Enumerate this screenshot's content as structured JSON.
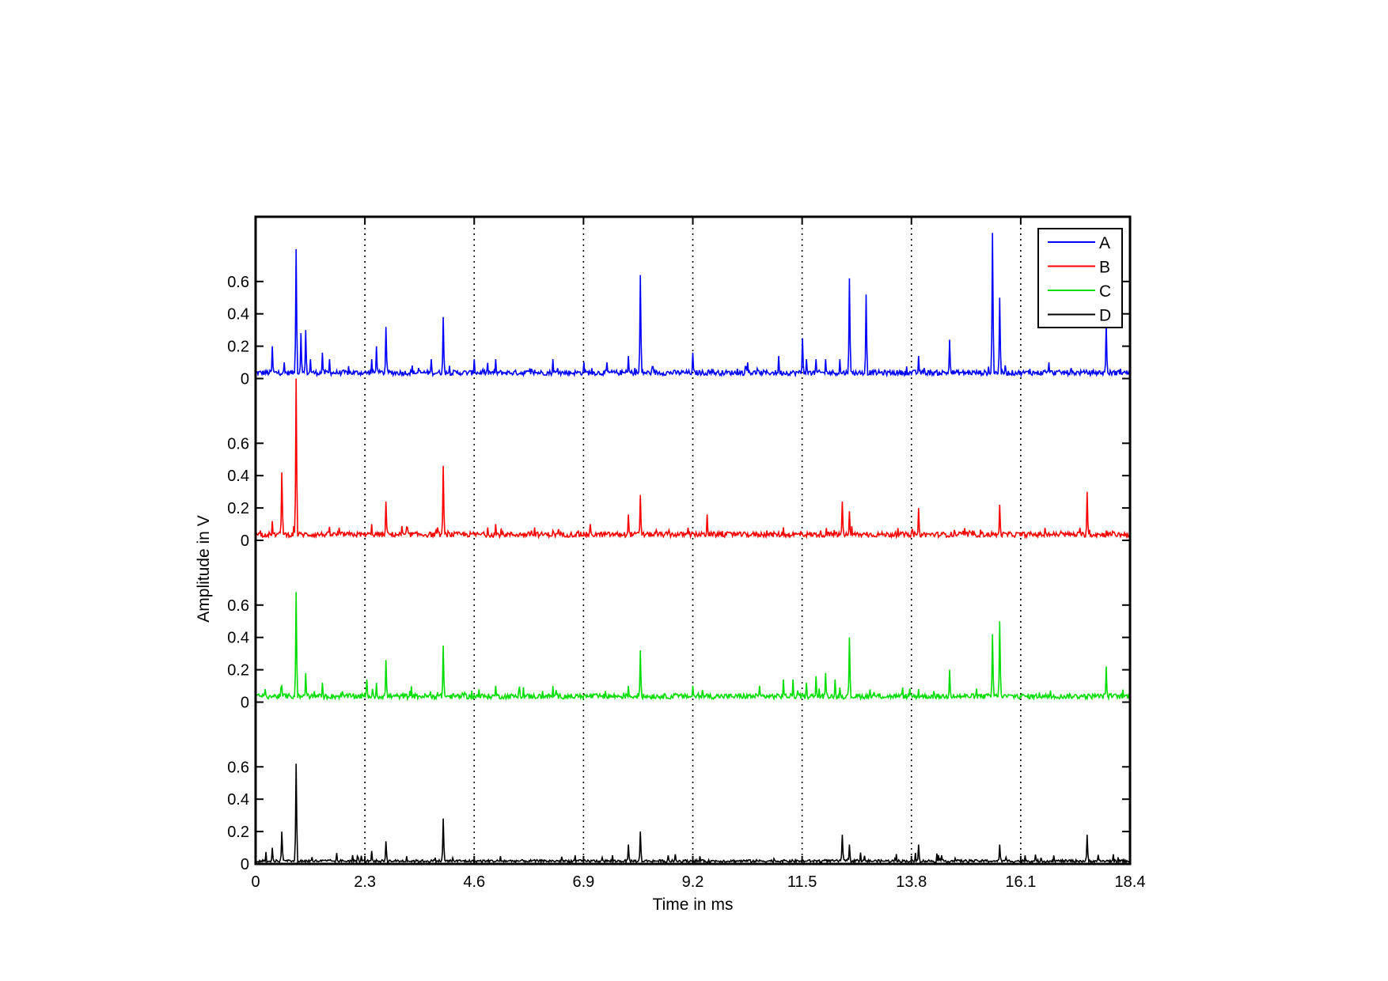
{
  "chart_data": {
    "type": "line",
    "title": "",
    "xlabel": "Time in ms",
    "ylabel": "Amplitude in V",
    "xlim": [
      0,
      18.4
    ],
    "x_ticks": [
      "0",
      "2.3",
      "4.6",
      "6.9",
      "9.2",
      "11.5",
      "13.8",
      "16.1",
      "18.4"
    ],
    "x_tick_values": [
      0,
      2.3,
      4.6,
      6.9,
      9.2,
      11.5,
      13.8,
      16.1,
      18.4
    ],
    "y_ticks_per_channel": [
      "0",
      "0.2",
      "0.4",
      "0.6"
    ],
    "y_tick_values": [
      0,
      0.2,
      0.4,
      0.6
    ],
    "channel_ylim": [
      0,
      1.0
    ],
    "grid": "vertical dotted lines at x ticks",
    "legend_position": "top-right",
    "series": [
      {
        "name": "A",
        "color": "#0000ff",
        "baseline": 0.02,
        "peaks": [
          [
            0.35,
            0.2
          ],
          [
            0.6,
            0.1
          ],
          [
            0.85,
            0.8
          ],
          [
            0.95,
            0.28
          ],
          [
            1.05,
            0.3
          ],
          [
            1.15,
            0.12
          ],
          [
            1.4,
            0.16
          ],
          [
            1.55,
            0.12
          ],
          [
            2.45,
            0.12
          ],
          [
            2.55,
            0.2
          ],
          [
            2.75,
            0.32
          ],
          [
            3.3,
            0.08
          ],
          [
            3.7,
            0.12
          ],
          [
            3.95,
            0.38
          ],
          [
            4.6,
            0.12
          ],
          [
            5.05,
            0.12
          ],
          [
            5.8,
            0.06
          ],
          [
            6.25,
            0.12
          ],
          [
            6.9,
            0.1
          ],
          [
            7.4,
            0.1
          ],
          [
            7.85,
            0.14
          ],
          [
            8.1,
            0.64
          ],
          [
            9.2,
            0.16
          ],
          [
            9.6,
            0.06
          ],
          [
            10.35,
            0.1
          ],
          [
            11.0,
            0.14
          ],
          [
            11.5,
            0.25
          ],
          [
            11.6,
            0.12
          ],
          [
            11.8,
            0.12
          ],
          [
            12.0,
            0.12
          ],
          [
            12.3,
            0.12
          ],
          [
            12.5,
            0.62
          ],
          [
            12.85,
            0.52
          ],
          [
            13.95,
            0.14
          ],
          [
            14.6,
            0.24
          ],
          [
            15.5,
            0.9
          ],
          [
            15.65,
            0.5
          ],
          [
            16.3,
            0.06
          ],
          [
            16.7,
            0.1
          ],
          [
            17.9,
            0.35
          ],
          [
            18.2,
            0.06
          ]
        ]
      },
      {
        "name": "B",
        "color": "#ff0000",
        "baseline": 0.02,
        "peaks": [
          [
            0.1,
            0.06
          ],
          [
            0.35,
            0.12
          ],
          [
            0.55,
            0.42
          ],
          [
            0.85,
            1.0
          ],
          [
            2.15,
            0.04
          ],
          [
            2.45,
            0.1
          ],
          [
            2.75,
            0.24
          ],
          [
            3.2,
            0.08
          ],
          [
            3.95,
            0.46
          ],
          [
            5.05,
            0.1
          ],
          [
            5.8,
            0.06
          ],
          [
            6.25,
            0.06
          ],
          [
            7.05,
            0.1
          ],
          [
            7.85,
            0.16
          ],
          [
            8.1,
            0.28
          ],
          [
            9.5,
            0.16
          ],
          [
            10.75,
            0.06
          ],
          [
            11.1,
            0.08
          ],
          [
            11.9,
            0.06
          ],
          [
            12.35,
            0.24
          ],
          [
            12.5,
            0.18
          ],
          [
            13.95,
            0.2
          ],
          [
            15.65,
            0.22
          ],
          [
            17.5,
            0.3
          ],
          [
            17.9,
            0.06
          ]
        ]
      },
      {
        "name": "C",
        "color": "#00dd00",
        "baseline": 0.02,
        "peaks": [
          [
            0.2,
            0.08
          ],
          [
            0.55,
            0.1
          ],
          [
            0.85,
            0.68
          ],
          [
            1.05,
            0.18
          ],
          [
            1.4,
            0.12
          ],
          [
            2.35,
            0.14
          ],
          [
            2.55,
            0.12
          ],
          [
            2.75,
            0.26
          ],
          [
            3.95,
            0.35
          ],
          [
            5.05,
            0.1
          ],
          [
            6.25,
            0.1
          ],
          [
            7.85,
            0.1
          ],
          [
            8.1,
            0.32
          ],
          [
            9.2,
            0.1
          ],
          [
            10.6,
            0.1
          ],
          [
            11.1,
            0.14
          ],
          [
            11.3,
            0.14
          ],
          [
            11.6,
            0.12
          ],
          [
            11.8,
            0.16
          ],
          [
            12.0,
            0.18
          ],
          [
            12.2,
            0.14
          ],
          [
            12.5,
            0.4
          ],
          [
            13.95,
            0.08
          ],
          [
            14.6,
            0.2
          ],
          [
            15.5,
            0.42
          ],
          [
            15.65,
            0.5
          ],
          [
            16.5,
            0.06
          ],
          [
            17.9,
            0.22
          ]
        ]
      },
      {
        "name": "D",
        "color": "#000000",
        "baseline": 0.01,
        "peaks": [
          [
            0.35,
            0.1
          ],
          [
            0.55,
            0.2
          ],
          [
            0.85,
            0.62
          ],
          [
            2.15,
            0.04
          ],
          [
            2.45,
            0.08
          ],
          [
            2.75,
            0.14
          ],
          [
            3.95,
            0.28
          ],
          [
            7.85,
            0.12
          ],
          [
            8.1,
            0.2
          ],
          [
            12.35,
            0.18
          ],
          [
            12.5,
            0.12
          ],
          [
            13.95,
            0.12
          ],
          [
            15.65,
            0.12
          ],
          [
            17.5,
            0.18
          ]
        ]
      }
    ]
  }
}
